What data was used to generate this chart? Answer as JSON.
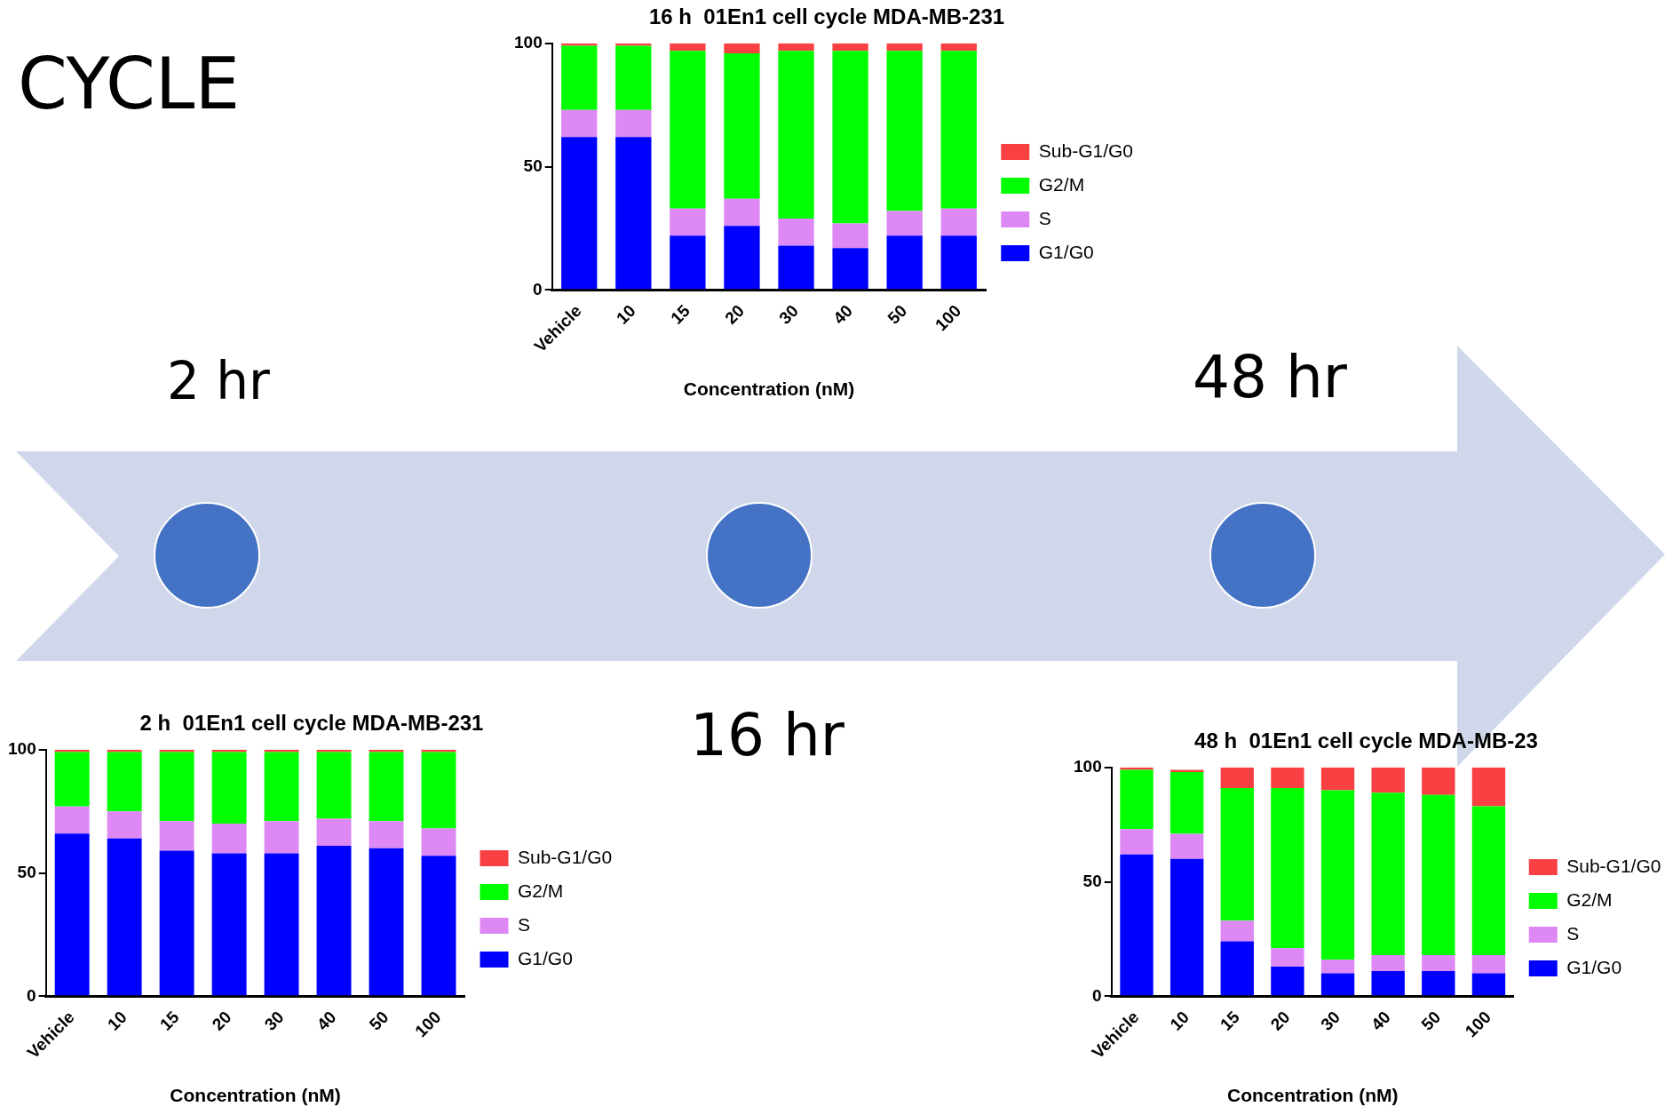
{
  "chart_data": [
    {
      "type": "bar",
      "title": "16 h  01En1 cell cycle MDA-MB-231",
      "xlabel": "Concentration (nM)",
      "categories": [
        "Vehicle",
        "10",
        "15",
        "20",
        "30",
        "40",
        "50",
        "100"
      ],
      "stacked": true,
      "ylim": [
        0,
        100
      ],
      "yticks": [
        0,
        50,
        100
      ],
      "legend": "right",
      "series": [
        {
          "name": "G1/G0",
          "color": "#0000ff",
          "values": [
            62,
            62,
            22,
            26,
            18,
            17,
            22,
            22
          ]
        },
        {
          "name": "S",
          "color": "#dd88f5",
          "values": [
            11,
            11,
            11,
            11,
            11,
            10,
            10,
            11
          ]
        },
        {
          "name": "G2/M",
          "color": "#00ff00",
          "values": [
            26,
            26,
            64,
            59,
            68,
            70,
            65,
            64
          ]
        },
        {
          "name": "Sub-G1/G0",
          "color": "#f94144",
          "values": [
            1,
            1,
            3,
            4,
            3,
            3,
            3,
            3
          ]
        }
      ]
    },
    {
      "type": "bar",
      "title": "2 h  01En1 cell cycle MDA-MB-231",
      "xlabel": "Concentration (nM)",
      "categories": [
        "Vehicle",
        "10",
        "15",
        "20",
        "30",
        "40",
        "50",
        "100"
      ],
      "stacked": true,
      "ylim": [
        0,
        100
      ],
      "yticks": [
        0,
        50,
        100
      ],
      "legend": "right",
      "series": [
        {
          "name": "G1/G0",
          "color": "#0000ff",
          "values": [
            66,
            64,
            59,
            58,
            58,
            61,
            60,
            57
          ]
        },
        {
          "name": "S",
          "color": "#dd88f5",
          "values": [
            11,
            11,
            12,
            12,
            13,
            11,
            11,
            11
          ]
        },
        {
          "name": "G2/M",
          "color": "#00ff00",
          "values": [
            22,
            24,
            28,
            29,
            28,
            27,
            28,
            31
          ]
        },
        {
          "name": "Sub-G1/G0",
          "color": "#f94144",
          "values": [
            1,
            1,
            1,
            1,
            1,
            1,
            1,
            1
          ]
        }
      ]
    },
    {
      "type": "bar",
      "title": "48 h  01En1 cell cycle MDA-MB-23",
      "xlabel": "Concentration (nM)",
      "categories": [
        "Vehicle",
        "10",
        "15",
        "20",
        "30",
        "40",
        "50",
        "100"
      ],
      "stacked": true,
      "ylim": [
        0,
        100
      ],
      "yticks": [
        0,
        50,
        100
      ],
      "legend": "right",
      "series": [
        {
          "name": "G1/G0",
          "color": "#0000ff",
          "values": [
            62,
            60,
            24,
            13,
            10,
            11,
            11,
            10
          ]
        },
        {
          "name": "S",
          "color": "#dd88f5",
          "values": [
            11,
            11,
            9,
            8,
            6,
            7,
            7,
            8
          ]
        },
        {
          "name": "G2/M",
          "color": "#00ff00",
          "values": [
            26,
            27,
            58,
            70,
            74,
            71,
            70,
            65
          ]
        },
        {
          "name": "Sub-G1/G0",
          "color": "#f94144",
          "values": [
            1,
            1,
            9,
            9,
            10,
            11,
            12,
            17
          ]
        }
      ]
    },
    {
      "type": "other",
      "annotations": [
        "CYCLE",
        "2 hr",
        "16 hr",
        "48 hr"
      ]
    }
  ]
}
